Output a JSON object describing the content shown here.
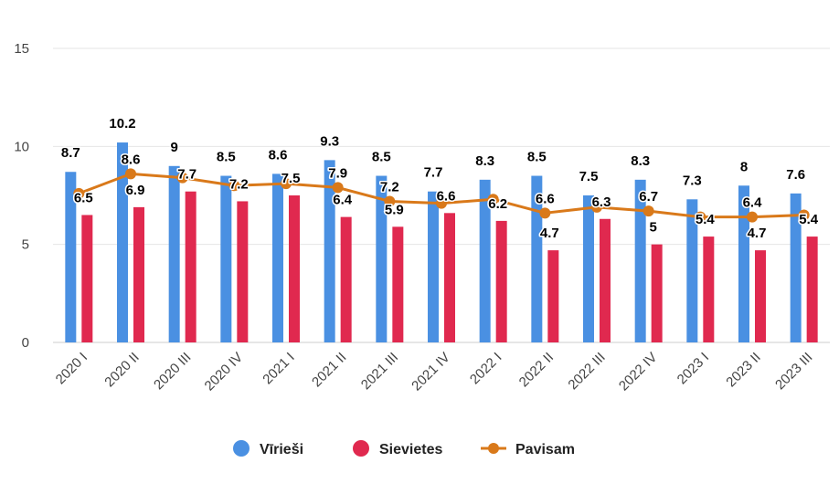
{
  "colors": {
    "men": "#4a90e2",
    "women": "#e0294f",
    "total": "#d9791a",
    "grid": "#e6e6e6",
    "axis": "#cccccc"
  },
  "chart_data": {
    "type": "bar",
    "categories": [
      "2020 I",
      "2020 II",
      "2020 III",
      "2020 IV",
      "2021 I",
      "2021 II",
      "2021 III",
      "2021 IV",
      "2022 I",
      "2022 II",
      "2022 III",
      "2022 IV",
      "2023 I",
      "2023 II",
      "2023 III"
    ],
    "series": [
      {
        "name": "Vīrieši",
        "type": "bar",
        "values": [
          8.7,
          10.2,
          9,
          8.5,
          8.6,
          9.3,
          8.5,
          7.7,
          8.3,
          8.5,
          7.5,
          8.3,
          7.3,
          8,
          7.6
        ]
      },
      {
        "name": "Sievietes",
        "type": "bar",
        "values": [
          6.5,
          6.9,
          7.7,
          7.2,
          7.5,
          6.4,
          5.9,
          6.6,
          6.2,
          4.7,
          6.3,
          5,
          5.4,
          4.7,
          5.4
        ]
      },
      {
        "name": "Pavisam",
        "type": "line",
        "values": [
          7.6,
          8.6,
          8.4,
          8.0,
          8.1,
          7.9,
          7.2,
          7.1,
          7.3,
          6.6,
          6.9,
          6.7,
          6.4,
          6.4,
          6.5
        ],
        "labels": [
          "",
          "8.6",
          "",
          "",
          "",
          "7.9",
          "7.2",
          "",
          "",
          "6.6",
          "",
          "6.7",
          "",
          "6.4",
          ""
        ]
      }
    ],
    "ylim": [
      0,
      15
    ],
    "yticks": [
      0,
      5,
      10,
      15
    ],
    "grid": true,
    "legend": "bottom-center"
  }
}
